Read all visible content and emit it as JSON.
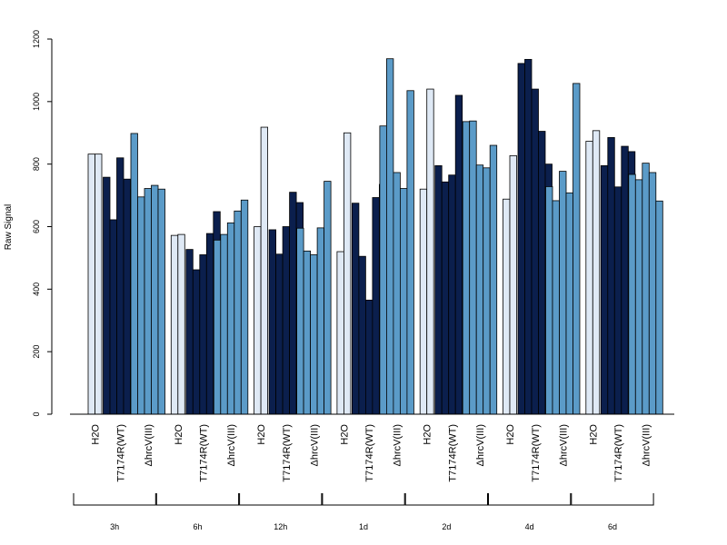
{
  "chart_data": {
    "type": "bar",
    "ylabel": "Raw Signal",
    "ylim": [
      0,
      1200
    ],
    "yticks": [
      0,
      200,
      400,
      600,
      800,
      1000,
      1200
    ],
    "grid": false,
    "legend": "none",
    "conditions": [
      "H2O",
      "T717 4R(WT)",
      "ΔhrcV(III)"
    ],
    "condition_labels": [
      "H2O",
      "T7174R(WT)",
      "ΔhrcV(III)"
    ],
    "condition_colors": [
      "#dfe9f5",
      "#0b1f4d",
      "#5b9bc8"
    ],
    "groups": [
      {
        "label": "3h",
        "values": [
          [
            832,
            832
          ],
          [
            758,
            622,
            820,
            752,
            718
          ],
          [
            898,
            695,
            722,
            732,
            720
          ]
        ]
      },
      {
        "label": "6h",
        "values": [
          [
            572,
            575
          ],
          [
            527,
            462,
            510,
            578,
            648
          ],
          [
            557,
            575,
            612,
            650,
            685
          ]
        ]
      },
      {
        "label": "12h",
        "values": [
          [
            600,
            918
          ],
          [
            590,
            512,
            600,
            710,
            677
          ],
          [
            595,
            522,
            510,
            596,
            745
          ]
        ]
      },
      {
        "label": "1d",
        "values": [
          [
            520,
            900
          ],
          [
            675,
            505,
            365,
            693,
            735
          ],
          [
            922,
            1137,
            773,
            722,
            1035
          ]
        ]
      },
      {
        "label": "2d",
        "values": [
          [
            720,
            1040
          ],
          [
            795,
            743,
            765,
            1020,
            933
          ],
          [
            936,
            938,
            797,
            788,
            860
          ]
        ]
      },
      {
        "label": "4d",
        "values": [
          [
            688,
            827
          ],
          [
            1122,
            1135,
            1040,
            905,
            800
          ],
          [
            728,
            683,
            777,
            708,
            1058
          ]
        ]
      },
      {
        "label": "6d",
        "values": [
          [
            873,
            907
          ],
          [
            795,
            885,
            727,
            857,
            840
          ],
          [
            767,
            750,
            803,
            773,
            682
          ]
        ]
      }
    ]
  }
}
